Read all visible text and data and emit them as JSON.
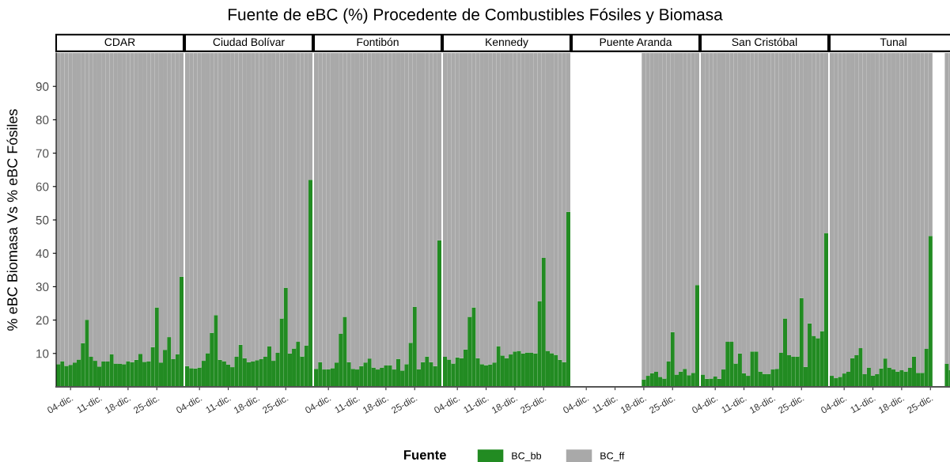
{
  "chart_data": [
    {
      "type": "bar",
      "stacked": true,
      "title": "CDAR",
      "annotations": [
        "Fuente de eBC (%) Procedente de Combustibles Fósiles y Biomasa"
      ],
      "ylabel": "% eBC Biomasa Vs % eBC Fósiles",
      "legend_title": "Fuente",
      "legend": "bottom",
      "categories": [
        null,
        null,
        null,
        "04-dic.",
        null,
        null,
        null,
        null,
        null,
        null,
        "11-dic.",
        null,
        null,
        null,
        null,
        null,
        null,
        "18-dic.",
        null,
        null,
        null,
        null,
        null,
        null,
        "25-dic.",
        null,
        null,
        null,
        null,
        null,
        null
      ],
      "ylim": [
        0,
        100
      ],
      "yticks": [
        10,
        20,
        30,
        40,
        50,
        60,
        70,
        80,
        90
      ],
      "series": [
        {
          "name": "BC_bb",
          "color": "#228b22",
          "values": [
            6.8,
            7.7,
            6.3,
            6.6,
            7.3,
            8.2,
            13.1,
            20.1,
            9.0,
            7.8,
            6.1,
            7.6,
            7.6,
            9.8,
            7.0,
            6.9,
            6.8,
            7.7,
            7.4,
            8.1,
            9.9,
            7.5,
            7.6,
            11.9,
            23.8,
            7.3,
            11.1,
            14.9,
            8.3,
            9.8,
            33.0
          ]
        },
        {
          "name": "BC_ff",
          "color": "#a9a9a9",
          "values": [
            93.2,
            92.3,
            93.7,
            93.4,
            92.7,
            91.8,
            86.9,
            79.9,
            91.0,
            92.2,
            93.9,
            92.4,
            92.4,
            90.2,
            93.0,
            93.1,
            93.2,
            92.3,
            92.6,
            91.9,
            90.1,
            92.5,
            92.4,
            88.1,
            76.2,
            92.7,
            88.9,
            85.1,
            91.7,
            90.2,
            67.0
          ]
        }
      ]
    },
    {
      "type": "bar",
      "stacked": true,
      "title": "Ciudad Bolívar",
      "tick_labels": "x",
      "categories": [
        null,
        null,
        null,
        "04-dic.",
        null,
        null,
        null,
        null,
        null,
        null,
        "11-dic.",
        null,
        null,
        null,
        null,
        null,
        null,
        "18-dic.",
        null,
        null,
        null,
        null,
        null,
        null,
        "25-dic.",
        null,
        null,
        null,
        null,
        null,
        null
      ],
      "ylim": [
        0,
        100
      ],
      "series": [
        {
          "color": "#228b22",
          "values": [
            6.2,
            5.6,
            5.5,
            5.8,
            7.8,
            10.1,
            16.2,
            21.5,
            8.1,
            7.7,
            6.7,
            5.9,
            9.0,
            12.6,
            8.6,
            7.4,
            7.6,
            8.0,
            8.3,
            9.0,
            12.2,
            7.8,
            10.2,
            20.5,
            29.7,
            10.0,
            11.5,
            13.5,
            9.1,
            12.4,
            62.0
          ]
        },
        {
          "color": "#a9a9a9",
          "values": [
            93.8,
            94.4,
            94.5,
            94.2,
            92.2,
            89.9,
            83.8,
            78.5,
            91.9,
            92.3,
            93.3,
            94.1,
            91.0,
            87.4,
            91.4,
            92.6,
            92.4,
            92.0,
            91.7,
            91.0,
            87.8,
            92.2,
            89.8,
            79.5,
            70.3,
            90.0,
            88.5,
            86.5,
            90.9,
            87.6,
            38.0
          ]
        }
      ]
    },
    {
      "type": "bar",
      "stacked": true,
      "title": "Fontibón",
      "tick_labels": "x",
      "categories": [
        null,
        null,
        null,
        "04-dic.",
        null,
        null,
        null,
        null,
        null,
        null,
        "11-dic.",
        null,
        null,
        null,
        null,
        null,
        null,
        "18-dic.",
        null,
        null,
        null,
        null,
        null,
        null,
        "25-dic.",
        null,
        null,
        null,
        null,
        null,
        null
      ],
      "ylim": [
        0,
        100
      ],
      "series": [
        {
          "color": "#228b22",
          "values": [
            5.4,
            7.4,
            5.2,
            5.3,
            5.6,
            7.3,
            15.9,
            21.0,
            7.4,
            5.4,
            5.2,
            6.2,
            7.3,
            8.5,
            5.8,
            5.2,
            5.7,
            6.4,
            6.5,
            5.2,
            8.4,
            4.9,
            6.8,
            13.2,
            24.0,
            5.3,
            7.4,
            9.1,
            7.4,
            6.2,
            43.9
          ]
        },
        {
          "color": "#a9a9a9",
          "values": [
            94.6,
            92.6,
            94.8,
            94.7,
            94.4,
            92.7,
            84.1,
            79.0,
            92.6,
            94.6,
            94.8,
            93.8,
            92.7,
            91.5,
            94.2,
            94.8,
            94.3,
            93.6,
            93.5,
            94.8,
            91.6,
            95.1,
            93.2,
            86.8,
            76.0,
            94.7,
            92.6,
            90.9,
            92.6,
            93.8,
            56.1
          ]
        }
      ]
    },
    {
      "type": "bar",
      "stacked": true,
      "title": "Kennedy",
      "tick_labels": "x",
      "categories": [
        null,
        null,
        null,
        "04-dic.",
        null,
        null,
        null,
        null,
        null,
        null,
        "11-dic.",
        null,
        null,
        null,
        null,
        null,
        null,
        "18-dic.",
        null,
        null,
        null,
        null,
        null,
        null,
        "25-dic.",
        null,
        null,
        null,
        null,
        null,
        null
      ],
      "ylim": [
        0,
        100
      ],
      "series": [
        {
          "color": "#228b22",
          "values": [
            9.0,
            8.2,
            7.0,
            8.8,
            8.6,
            11.2,
            21.0,
            23.8,
            8.6,
            6.8,
            6.5,
            6.7,
            7.3,
            12.2,
            9.4,
            8.6,
            9.7,
            10.6,
            10.8,
            10.0,
            10.3,
            10.2,
            10.0,
            25.6,
            38.6,
            10.8,
            10.1,
            9.6,
            8.1,
            7.4,
            52.4
          ]
        },
        {
          "color": "#a9a9a9",
          "values": [
            91.0,
            91.8,
            93.0,
            91.2,
            91.4,
            88.8,
            79.0,
            76.2,
            91.4,
            93.2,
            93.5,
            93.3,
            92.7,
            87.8,
            90.6,
            91.4,
            90.3,
            89.4,
            89.2,
            90.0,
            89.7,
            89.8,
            90.0,
            74.4,
            61.4,
            89.2,
            89.9,
            90.4,
            91.9,
            92.6,
            47.6
          ]
        }
      ]
    },
    {
      "type": "bar",
      "stacked": true,
      "title": "Puente Aranda",
      "tick_labels": "x",
      "categories": [
        null,
        null,
        null,
        "04-dic.",
        null,
        null,
        null,
        null,
        null,
        null,
        "11-dic.",
        null,
        null,
        null,
        null,
        null,
        null,
        "18-dic.",
        null,
        null,
        null,
        null,
        null,
        null,
        "25-dic.",
        null,
        null,
        null,
        null,
        null,
        null
      ],
      "ylim": [
        0,
        100
      ],
      "series": [
        {
          "color": "#228b22",
          "values": [
            null,
            null,
            null,
            null,
            null,
            null,
            null,
            null,
            null,
            null,
            null,
            null,
            null,
            null,
            null,
            null,
            null,
            2.2,
            3.3,
            4.1,
            4.5,
            3.0,
            2.5,
            7.6,
            16.4,
            3.7,
            4.6,
            5.4,
            3.5,
            4.2,
            30.5
          ]
        },
        {
          "color": "#a9a9a9",
          "values": [
            null,
            null,
            null,
            null,
            null,
            null,
            null,
            null,
            null,
            null,
            null,
            null,
            null,
            null,
            null,
            null,
            null,
            97.8,
            96.7,
            95.9,
            95.5,
            97.0,
            97.5,
            92.4,
            83.6,
            96.3,
            95.4,
            94.6,
            96.5,
            95.8,
            69.5
          ]
        }
      ]
    },
    {
      "type": "bar",
      "stacked": true,
      "title": "San Cristóbal",
      "tick_labels": "x",
      "categories": [
        null,
        null,
        null,
        "04-dic.",
        null,
        null,
        null,
        null,
        null,
        null,
        "11-dic.",
        null,
        null,
        null,
        null,
        null,
        null,
        "18-dic.",
        null,
        null,
        null,
        null,
        null,
        null,
        "25-dic.",
        null,
        null,
        null,
        null,
        null,
        null
      ],
      "ylim": [
        0,
        100
      ],
      "series": [
        {
          "color": "#228b22",
          "values": [
            3.7,
            2.4,
            2.5,
            3.1,
            2.4,
            5.2,
            13.5,
            13.5,
            7.0,
            10.0,
            4.1,
            3.3,
            10.6,
            10.6,
            4.6,
            3.9,
            3.9,
            5.2,
            5.4,
            10.2,
            20.5,
            9.5,
            9.0,
            9.1,
            26.6,
            6.0,
            19.0,
            15.3,
            14.6,
            16.7,
            46.1
          ]
        },
        {
          "color": "#a9a9a9",
          "values": [
            96.3,
            97.6,
            97.5,
            96.9,
            97.6,
            94.8,
            86.5,
            86.5,
            93.0,
            90.0,
            95.9,
            96.7,
            89.4,
            89.4,
            95.4,
            96.1,
            96.1,
            94.8,
            94.6,
            89.8,
            79.5,
            90.5,
            91.0,
            90.9,
            73.4,
            94.0,
            81.0,
            84.7,
            85.4,
            83.3,
            53.9
          ]
        }
      ]
    },
    {
      "type": "bar",
      "stacked": true,
      "title": "Tunal",
      "tick_labels": "x",
      "categories": [
        null,
        null,
        null,
        "04-dic.",
        null,
        null,
        null,
        null,
        null,
        null,
        "11-dic.",
        null,
        null,
        null,
        null,
        null,
        null,
        "18-dic.",
        null,
        null,
        null,
        null,
        null,
        null,
        "25-dic.",
        null,
        null,
        null,
        null,
        null,
        null
      ],
      "ylim": [
        0,
        100
      ],
      "series": [
        {
          "color": "#228b22",
          "values": [
            3.3,
            2.6,
            3.0,
            4.0,
            4.5,
            8.6,
            9.5,
            11.6,
            3.8,
            5.8,
            3.4,
            3.8,
            5.5,
            8.5,
            5.8,
            5.2,
            4.6,
            5.0,
            4.6,
            5.7,
            9.1,
            4.2,
            4.2,
            11.4,
            45.2,
            null,
            null,
            null,
            6.9,
            5.0,
            null
          ]
        },
        {
          "color": "#a9a9a9",
          "values": [
            96.7,
            97.4,
            97.0,
            96.0,
            95.5,
            91.4,
            90.5,
            88.4,
            96.2,
            94.2,
            96.6,
            96.2,
            94.5,
            91.5,
            94.2,
            94.8,
            95.4,
            95.0,
            95.4,
            94.3,
            90.9,
            95.8,
            95.8,
            88.6,
            54.8,
            null,
            null,
            null,
            93.1,
            95.0,
            null
          ]
        }
      ]
    }
  ]
}
